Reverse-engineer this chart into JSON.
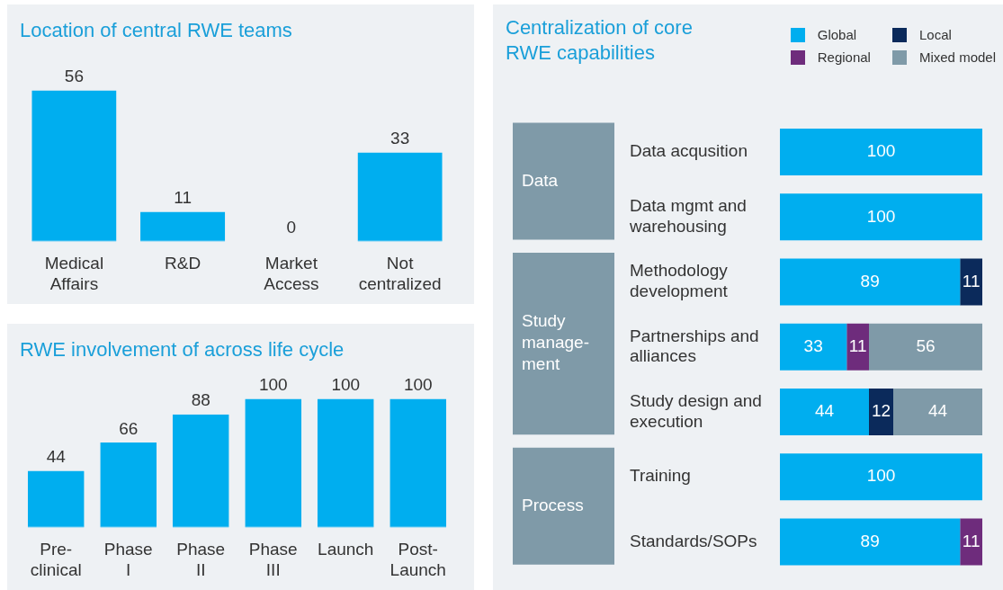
{
  "chart_data": [
    {
      "type": "bar",
      "title": "Location of central RWE teams",
      "categories": [
        "Medical Affairs",
        "R&D",
        "Market Access",
        "Not centralized"
      ],
      "values": [
        56,
        11,
        0,
        33
      ],
      "color": "#00aeef",
      "data_labels": true
    },
    {
      "type": "bar",
      "title": "RWE involvement of across life cycle",
      "categories": [
        "Pre-clinical",
        "Phase I",
        "Phase II",
        "Phase III",
        "Launch",
        "Post-Launch"
      ],
      "values": [
        44,
        66,
        88,
        100,
        100,
        100
      ],
      "color": "#00aeef",
      "data_labels": true
    },
    {
      "type": "bar",
      "orientation": "horizontal",
      "stacked": true,
      "title": "Centralization of core RWE capabilities",
      "categories": [
        "Data acqusition",
        "Data mgmt and warehousing",
        "Methodology development",
        "Partnerships and alliances",
        "Study design and execution",
        "Training",
        "Standards/SOPs"
      ],
      "series": [
        {
          "name": "Global",
          "color": "#00aeef",
          "values": [
            100,
            100,
            89,
            33,
            44,
            100,
            89
          ]
        },
        {
          "name": "Local",
          "color": "#0b2a5b",
          "values": [
            null,
            null,
            11,
            null,
            12,
            null,
            null
          ]
        },
        {
          "name": "Regional",
          "color": "#6e2c7c",
          "values": [
            null,
            null,
            null,
            11,
            null,
            null,
            11
          ]
        },
        {
          "name": "Mixed model",
          "color": "#7f9aa8",
          "values": [
            null,
            null,
            null,
            56,
            44,
            null,
            null
          ]
        }
      ],
      "legend": "top right",
      "data_labels": true,
      "annotations": [
        "Data",
        "Study manage-ment",
        "Process"
      ]
    }
  ]
}
